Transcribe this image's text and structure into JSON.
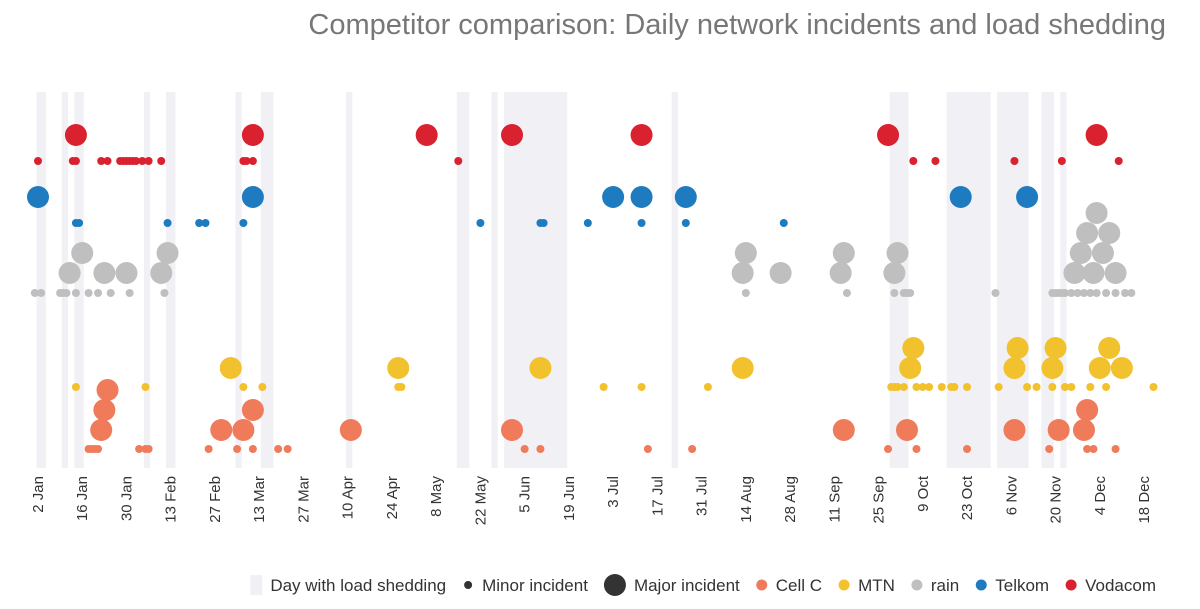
{
  "chart_data": {
    "type": "scatter",
    "title": "Competitor comparison: Daily network incidents and load shedding",
    "xlabel": "",
    "ylabel": "",
    "x_range": [
      "2022-01-01",
      "2022-12-27"
    ],
    "x_ticks": [
      "2 Jan",
      "16 Jan",
      "30 Jan",
      "13 Feb",
      "27 Feb",
      "13 Mar",
      "27 Mar",
      "10 Apr",
      "24 Apr",
      "8 May",
      "22 May",
      "5 Jun",
      "19 Jun",
      "3 Jul",
      "17 Jul",
      "31 Jul",
      "14 Aug",
      "28 Aug",
      "11 Sep",
      "25 Sep",
      "9 Oct",
      "23 Oct",
      "6 Nov",
      "20 Nov",
      "4 Dec",
      "18 Dec"
    ],
    "load_shedding_days": [
      {
        "start": "2022-01-02",
        "end": "2022-01-04"
      },
      {
        "start": "2022-01-10",
        "end": "2022-01-11"
      },
      {
        "start": "2022-01-14",
        "end": "2022-01-16"
      },
      {
        "start": "2022-02-05",
        "end": "2022-02-06"
      },
      {
        "start": "2022-02-12",
        "end": "2022-02-14"
      },
      {
        "start": "2022-03-06",
        "end": "2022-03-07"
      },
      {
        "start": "2022-03-14",
        "end": "2022-03-17"
      },
      {
        "start": "2022-04-10",
        "end": "2022-04-11"
      },
      {
        "start": "2022-05-15",
        "end": "2022-05-18"
      },
      {
        "start": "2022-05-26",
        "end": "2022-05-27"
      },
      {
        "start": "2022-05-30",
        "end": "2022-06-18"
      },
      {
        "start": "2022-07-22",
        "end": "2022-07-23"
      },
      {
        "start": "2022-09-29",
        "end": "2022-10-04"
      },
      {
        "start": "2022-10-17",
        "end": "2022-10-30"
      },
      {
        "start": "2022-11-02",
        "end": "2022-11-04"
      },
      {
        "start": "2022-11-05",
        "end": "2022-11-11"
      },
      {
        "start": "2022-11-16",
        "end": "2022-11-19"
      },
      {
        "start": "2022-11-22",
        "end": "2022-11-23"
      }
    ],
    "series": [
      {
        "name": "Vodacom",
        "color": "#d9212f",
        "minor": [
          "2022-01-02",
          "2022-01-13",
          "2022-01-14",
          "2022-01-22",
          "2022-01-24",
          "2022-01-28",
          "2022-01-29",
          "2022-01-30",
          "2022-01-31",
          "2022-02-01",
          "2022-02-02",
          "2022-02-04",
          "2022-02-06",
          "2022-02-10",
          "2022-03-08",
          "2022-03-09",
          "2022-03-11",
          "2022-05-15",
          "2022-10-06",
          "2022-10-13",
          "2022-11-07",
          "2022-11-22",
          "2022-12-10"
        ],
        "major": [
          "2022-01-14",
          "2022-03-11",
          "2022-05-05",
          "2022-06-01",
          "2022-07-12",
          "2022-09-28",
          "2022-12-03"
        ]
      },
      {
        "name": "Telkom",
        "color": "#1f7bbf",
        "minor": [
          "2022-01-14",
          "2022-01-15",
          "2022-02-12",
          "2022-02-22",
          "2022-02-24",
          "2022-03-08",
          "2022-05-22",
          "2022-06-10",
          "2022-06-11",
          "2022-06-25",
          "2022-07-12",
          "2022-07-26",
          "2022-08-26"
        ],
        "major": [
          "2022-01-02",
          "2022-03-11",
          "2022-07-03",
          "2022-07-12",
          "2022-07-26",
          "2022-10-21",
          "2022-11-11"
        ]
      },
      {
        "name": "rain",
        "color": "#bfbfbf",
        "minor": [
          "2022-01-01",
          "2022-01-03",
          "2022-01-09",
          "2022-01-10",
          "2022-01-11",
          "2022-01-14",
          "2022-01-18",
          "2022-01-21",
          "2022-01-25",
          "2022-01-31",
          "2022-02-11",
          "2022-08-14",
          "2022-09-15",
          "2022-09-30",
          "2022-10-03",
          "2022-10-04",
          "2022-10-05",
          "2022-11-01",
          "2022-11-19",
          "2022-11-20",
          "2022-11-21",
          "2022-11-22",
          "2022-11-23",
          "2022-11-25",
          "2022-11-27",
          "2022-11-29",
          "2022-12-01",
          "2022-12-03",
          "2022-12-06",
          "2022-12-09",
          "2022-12-12",
          "2022-12-14"
        ],
        "major": [
          "2022-01-12",
          "2022-01-16",
          "2022-01-23",
          "2022-01-30",
          "2022-02-10",
          "2022-02-12",
          "2022-08-13",
          "2022-08-14",
          "2022-08-25",
          "2022-09-13",
          "2022-09-14",
          "2022-09-30",
          "2022-10-01",
          "2022-11-26",
          "2022-11-28",
          "2022-11-30",
          "2022-12-02",
          "2022-12-03",
          "2022-12-05",
          "2022-12-07",
          "2022-12-09"
        ]
      },
      {
        "name": "MTN",
        "color": "#f2c12e",
        "minor": [
          "2022-01-14",
          "2022-02-05",
          "2022-03-08",
          "2022-03-14",
          "2022-04-26",
          "2022-04-27",
          "2022-06-30",
          "2022-07-12",
          "2022-08-02",
          "2022-09-29",
          "2022-09-30",
          "2022-10-01",
          "2022-10-03",
          "2022-10-07",
          "2022-10-09",
          "2022-10-11",
          "2022-10-15",
          "2022-10-18",
          "2022-10-19",
          "2022-10-23",
          "2022-11-02",
          "2022-11-11",
          "2022-11-14",
          "2022-11-19",
          "2022-11-23",
          "2022-11-25",
          "2022-12-01",
          "2022-12-06",
          "2022-12-21"
        ],
        "major": [
          "2022-03-04",
          "2022-04-26",
          "2022-06-10",
          "2022-08-13",
          "2022-10-05",
          "2022-10-06",
          "2022-11-07",
          "2022-11-08",
          "2022-11-19",
          "2022-11-20",
          "2022-12-04",
          "2022-12-07",
          "2022-12-11"
        ]
      },
      {
        "name": "Cell C",
        "color": "#ef7b5b",
        "minor": [
          "2022-01-18",
          "2022-01-19",
          "2022-01-20",
          "2022-01-21",
          "2022-02-03",
          "2022-02-05",
          "2022-02-06",
          "2022-02-25",
          "2022-03-06",
          "2022-03-11",
          "2022-03-19",
          "2022-03-22",
          "2022-06-05",
          "2022-06-10",
          "2022-07-14",
          "2022-07-28",
          "2022-09-28",
          "2022-10-07",
          "2022-10-23",
          "2022-11-18",
          "2022-11-30",
          "2022-12-02",
          "2022-12-09"
        ],
        "major": [
          "2022-01-22",
          "2022-01-23",
          "2022-01-24",
          "2022-03-01",
          "2022-03-08",
          "2022-03-11",
          "2022-04-11",
          "2022-06-01",
          "2022-09-14",
          "2022-10-04",
          "2022-11-07",
          "2022-11-21",
          "2022-11-29",
          "2022-11-30"
        ]
      }
    ],
    "legend": {
      "placement": "bottom-right",
      "items": [
        {
          "label": "Day with load shedding",
          "kind": "shade",
          "color": "#f0f0f5"
        },
        {
          "label": "Minor incident",
          "kind": "minor",
          "color": "#333333"
        },
        {
          "label": "Major incident",
          "kind": "major",
          "color": "#333333"
        },
        {
          "label": "Cell C",
          "kind": "series",
          "color": "#ef7b5b"
        },
        {
          "label": "MTN",
          "kind": "series",
          "color": "#f2c12e"
        },
        {
          "label": "rain",
          "kind": "series",
          "color": "#bfbfbf"
        },
        {
          "label": "Telkom",
          "kind": "series",
          "color": "#1f7bbf"
        },
        {
          "label": "Vodacom",
          "kind": "series",
          "color": "#d9212f"
        }
      ]
    },
    "grid": false
  }
}
